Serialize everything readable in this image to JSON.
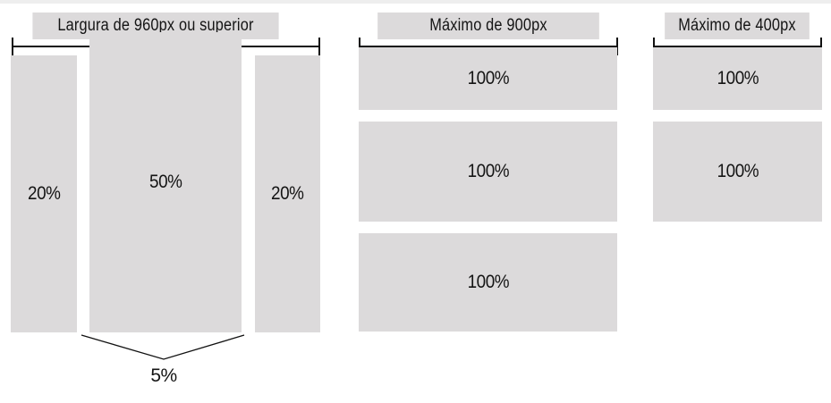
{
  "column_960": {
    "title": "Largura de 960px ou superior",
    "left_label": "20%",
    "center_label": "50%",
    "right_label": "20%",
    "gap_label": "5%"
  },
  "column_900": {
    "title": "Máximo de 900px",
    "rows": [
      "100%",
      "100%",
      "100%"
    ]
  },
  "column_400": {
    "title": "Máximo de 400px",
    "rows": [
      "100%",
      "100%"
    ]
  },
  "colors": {
    "box_fill": "#dcdadb",
    "line": "#111111",
    "text": "#141414"
  }
}
